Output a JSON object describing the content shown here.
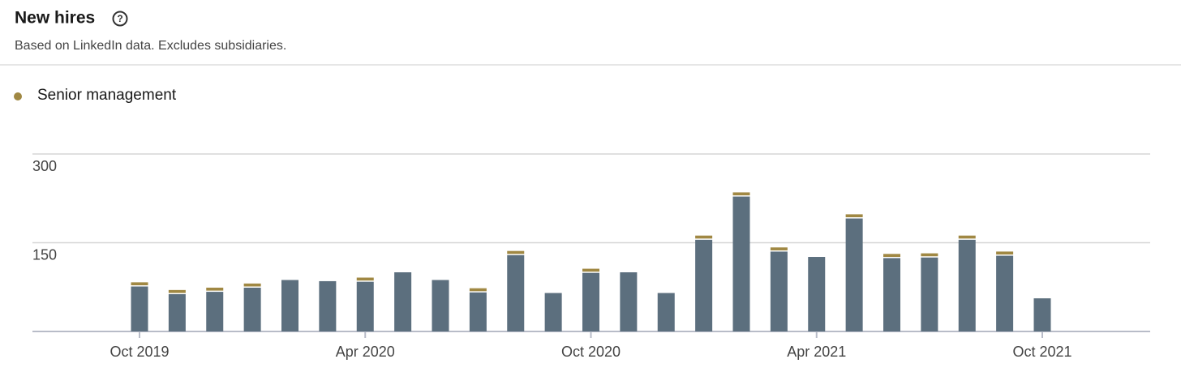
{
  "header": {
    "title": "New hires",
    "subtitle": "Based on LinkedIn data. Excludes subsidiaries."
  },
  "chart_data": {
    "type": "bar",
    "stacked": true,
    "categories": [
      "Oct 2019",
      null,
      null,
      null,
      null,
      null,
      "Apr 2020",
      null,
      null,
      null,
      null,
      null,
      "Oct 2020",
      null,
      null,
      null,
      null,
      null,
      "Apr 2021",
      null,
      null,
      null,
      null,
      null,
      "Oct 2021"
    ],
    "series": [
      {
        "color": "#5c6f7e",
        "values": [
          76,
          63,
          67,
          74,
          87,
          85,
          84,
          100,
          87,
          66,
          129,
          65,
          99,
          100,
          65,
          155,
          228,
          135,
          126,
          191,
          124,
          125,
          155,
          128,
          56
        ]
      },
      {
        "name": "Senior management",
        "color": "#a08843",
        "values": [
          5,
          5,
          5,
          5,
          null,
          null,
          5,
          null,
          null,
          5,
          5,
          null,
          5,
          null,
          null,
          5,
          5,
          5,
          null,
          5,
          5,
          5,
          5,
          5,
          null
        ]
      }
    ],
    "ylim": [
      0,
      300
    ],
    "yticks": [
      150,
      300
    ],
    "grid": true
  }
}
